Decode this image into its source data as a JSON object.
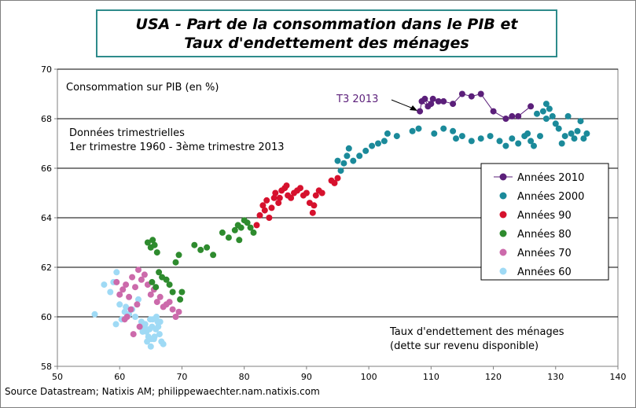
{
  "chart_data": {
    "type": "scatter",
    "title": [
      "USA - Part de la consommation dans le PIB et",
      "Taux d'endettement des ménages"
    ],
    "ylabel": "Consommation sur PIB (en %)",
    "xlabel": [
      "Taux d'endettement des ménages",
      "(dette sur revenu disponible)"
    ],
    "note": [
      "Données trimestrielles",
      "1er trimestre  1960 - 3ème trimestre  2013"
    ],
    "source": "Source Datastream; Natixis AM; philippewaechter.nam.natixis.com",
    "xlim": [
      50,
      140
    ],
    "ylim": [
      58,
      70
    ],
    "x_ticks": [
      50,
      60,
      70,
      80,
      90,
      100,
      110,
      120,
      130,
      140
    ],
    "y_ticks": [
      58,
      60,
      62,
      64,
      66,
      68,
      70
    ],
    "gridlines": [
      60,
      62,
      64,
      66,
      68,
      70
    ],
    "annotation": {
      "text": "T3 2013",
      "x": 108.2,
      "y": 68.3
    },
    "legend_position": "right",
    "series": [
      {
        "name": "Années 2010",
        "color": "#5b1f7a",
        "connected": true,
        "x": [
          108.2,
          108.5,
          109.5,
          109.0,
          110.0,
          110.3,
          111.2,
          112.0,
          113.5,
          115.0,
          116.5,
          118.0,
          120.0,
          122.0,
          123.0,
          124.0,
          126.0
        ],
        "y": [
          68.3,
          68.7,
          68.5,
          68.8,
          68.6,
          68.8,
          68.7,
          68.7,
          68.6,
          69.0,
          68.9,
          69.0,
          68.3,
          68.0,
          68.1,
          68.1,
          68.5
        ]
      },
      {
        "name": "Années 2000",
        "color": "#1b8a9a",
        "connected": false,
        "x": [
          95.0,
          95.5,
          96.0,
          96.5,
          96.8,
          97.5,
          98.5,
          99.5,
          100.5,
          101.5,
          102.5,
          103.0,
          104.5,
          107.0,
          108.0,
          110.5,
          112.0,
          113.5,
          114.0,
          115.0,
          116.5,
          118.0,
          119.5,
          121.0,
          122.0,
          123.0,
          124.0,
          125.0,
          125.5,
          126.0,
          126.5,
          127.5,
          128.0,
          128.5,
          129.0,
          129.5,
          130.0,
          130.5,
          131.0,
          131.5,
          132.0,
          132.5,
          133.0,
          133.5,
          134.0,
          134.5,
          135.0,
          128.5,
          127.0
        ],
        "y": [
          66.3,
          65.9,
          66.2,
          66.5,
          66.8,
          66.3,
          66.5,
          66.7,
          66.9,
          67.0,
          67.1,
          67.4,
          67.3,
          67.5,
          67.6,
          67.4,
          67.6,
          67.5,
          67.2,
          67.3,
          67.1,
          67.2,
          67.3,
          67.1,
          66.9,
          67.2,
          67.0,
          67.3,
          67.4,
          67.1,
          66.9,
          67.3,
          68.3,
          68.0,
          68.4,
          68.1,
          67.8,
          67.6,
          67.0,
          67.3,
          68.1,
          67.4,
          67.2,
          67.5,
          67.9,
          67.2,
          67.4,
          68.6,
          68.2
        ]
      },
      {
        "name": "Années 90",
        "color": "#d6112d",
        "connected": false,
        "x": [
          82.0,
          82.5,
          83.0,
          83.3,
          83.6,
          84.0,
          84.4,
          84.8,
          85.0,
          85.5,
          86.0,
          86.5,
          87.0,
          87.5,
          88.0,
          88.5,
          89.0,
          89.5,
          90.0,
          90.5,
          91.0,
          91.2,
          91.5,
          92.0,
          92.5,
          94.0,
          94.5,
          95.0,
          85.7,
          86.8
        ],
        "y": [
          63.7,
          64.1,
          64.5,
          64.3,
          64.7,
          64.0,
          64.4,
          64.8,
          65.0,
          64.6,
          65.1,
          65.2,
          64.9,
          64.8,
          65.0,
          65.1,
          65.2,
          64.9,
          65.0,
          64.6,
          64.2,
          64.5,
          64.9,
          65.1,
          65.0,
          65.5,
          65.4,
          65.6,
          64.8,
          65.3
        ]
      },
      {
        "name": "Années 80",
        "color": "#2e8b2e",
        "connected": false,
        "x": [
          64.5,
          65.0,
          65.3,
          65.6,
          66.0,
          66.3,
          66.8,
          67.5,
          68.0,
          68.5,
          69.0,
          69.5,
          70.0,
          72.0,
          73.0,
          74.0,
          75.0,
          76.5,
          77.5,
          78.5,
          79.0,
          79.5,
          80.0,
          80.5,
          81.0,
          81.5,
          65.2,
          65.8,
          69.7,
          79.2
        ],
        "y": [
          63.0,
          62.8,
          63.1,
          62.9,
          62.6,
          61.8,
          61.6,
          61.5,
          61.3,
          61.0,
          62.2,
          62.5,
          61.0,
          62.9,
          62.7,
          62.8,
          62.5,
          63.4,
          63.2,
          63.5,
          63.7,
          63.6,
          63.9,
          63.8,
          63.6,
          63.4,
          61.4,
          61.2,
          60.7,
          63.1
        ]
      },
      {
        "name": "Années 70",
        "color": "#cc6aab",
        "connected": false,
        "x": [
          59.5,
          60.0,
          60.5,
          61.0,
          61.5,
          62.0,
          62.5,
          62.8,
          63.0,
          63.5,
          64.0,
          64.5,
          65.0,
          65.5,
          66.0,
          66.5,
          67.0,
          67.5,
          68.0,
          68.5,
          69.0,
          69.5,
          61.2,
          60.8,
          62.2,
          63.2,
          61.8
        ],
        "y": [
          61.4,
          60.9,
          61.1,
          61.3,
          60.8,
          61.6,
          61.2,
          60.5,
          61.9,
          61.5,
          61.7,
          61.3,
          60.9,
          61.1,
          60.6,
          60.8,
          60.4,
          60.5,
          60.6,
          60.3,
          60.0,
          60.2,
          60.0,
          59.9,
          59.3,
          59.6,
          60.3
        ]
      },
      {
        "name": "Années 60",
        "color": "#9fdaf5",
        "connected": false,
        "x": [
          56.0,
          57.5,
          58.5,
          59.0,
          59.5,
          60.0,
          60.3,
          60.8,
          61.0,
          61.5,
          62.0,
          62.5,
          63.0,
          63.5,
          64.0,
          64.3,
          64.6,
          64.9,
          65.2,
          65.5,
          65.8,
          66.1,
          66.4,
          66.7,
          67.0,
          64.1,
          64.4,
          64.8,
          65.0,
          65.3,
          65.6,
          65.9,
          66.2,
          59.4,
          63.7,
          65.1,
          66.5
        ],
        "y": [
          60.1,
          61.3,
          61.0,
          61.4,
          61.8,
          60.5,
          59.9,
          60.2,
          60.4,
          60.1,
          60.3,
          60.0,
          60.7,
          59.8,
          59.6,
          59.4,
          59.2,
          59.9,
          59.6,
          59.1,
          59.5,
          59.8,
          59.3,
          59.0,
          58.9,
          59.7,
          59.0,
          59.5,
          58.8,
          59.9,
          59.2,
          60.0,
          59.6,
          59.7,
          59.4,
          59.1,
          59.8
        ]
      }
    ]
  },
  "colors": {
    "frame": "#7f7f7f",
    "title_border": "#2e8b8b",
    "annotation": "#5b1f7a"
  }
}
